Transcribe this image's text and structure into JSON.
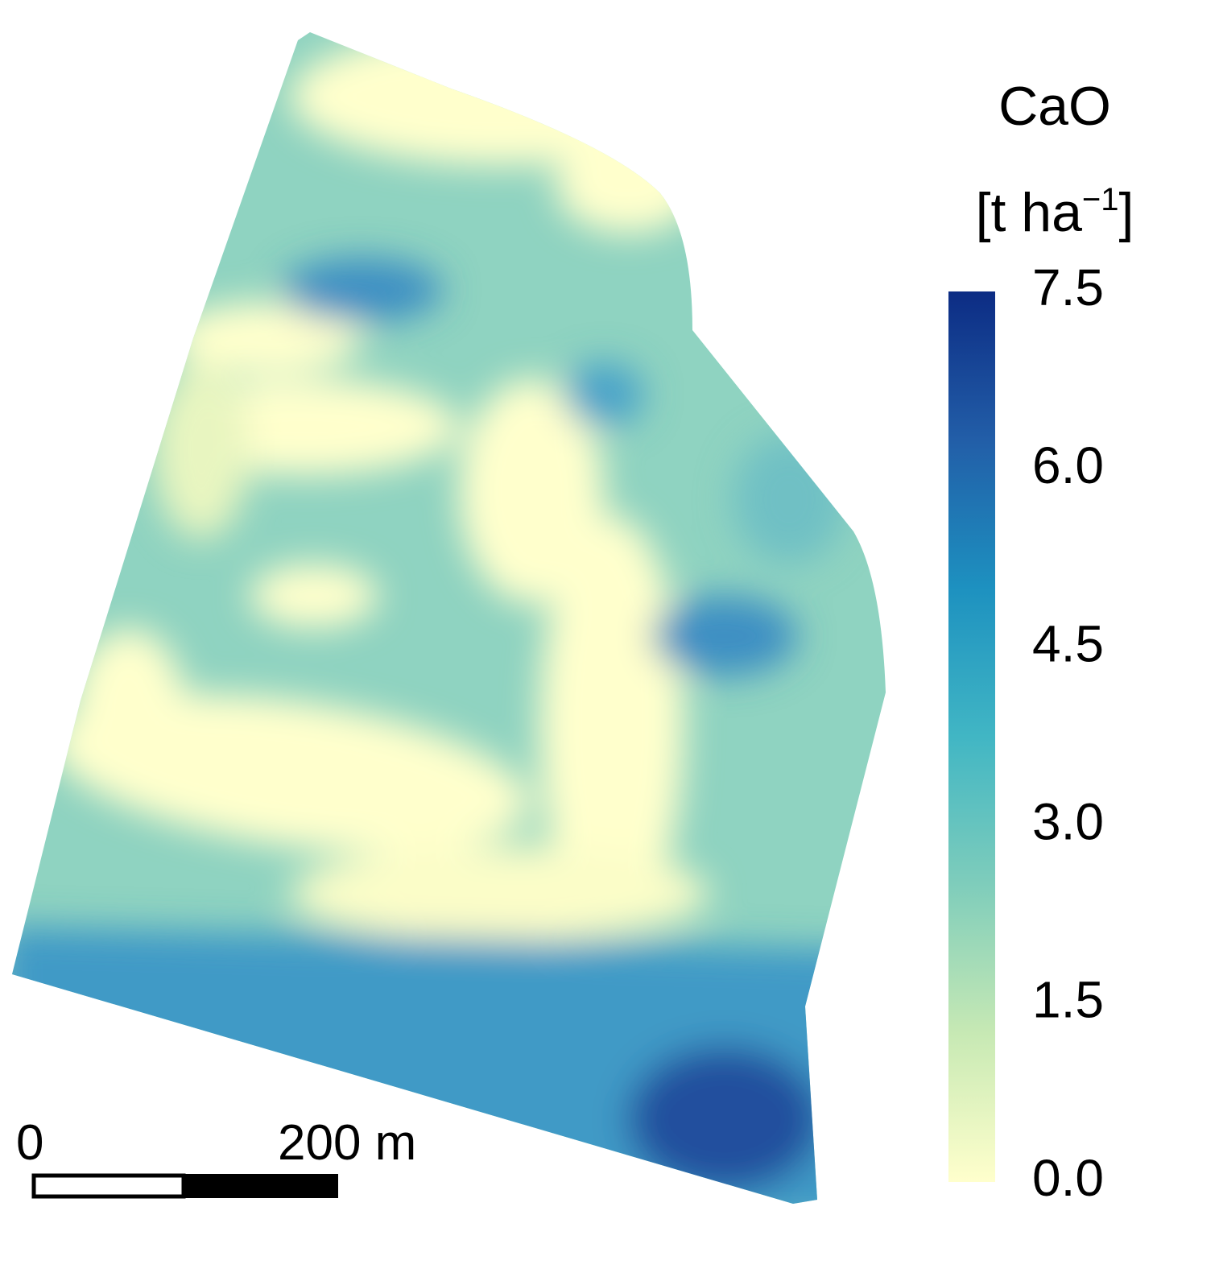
{
  "legend": {
    "title": "CaO",
    "unit": {
      "base": "[t ha",
      "exponent": "−1",
      "close": "]"
    },
    "range": [
      0,
      7.5
    ],
    "colors": [
      "#ffffcc",
      "#c7e9b4",
      "#7fcdbb",
      "#41b6c4",
      "#1d91c0",
      "#225ea8",
      "#0c2c84"
    ],
    "ticks": [
      {
        "value": 0,
        "label": "0.0"
      },
      {
        "value": 1.5,
        "label": "1.5"
      },
      {
        "value": 3,
        "label": "3.0"
      },
      {
        "value": 4.5,
        "label": "4.5"
      },
      {
        "value": 6,
        "label": "6.0"
      },
      {
        "value": 7.5,
        "label": "7.5"
      }
    ]
  },
  "scale_bar": {
    "labels": [
      "0",
      "200 m"
    ]
  }
}
